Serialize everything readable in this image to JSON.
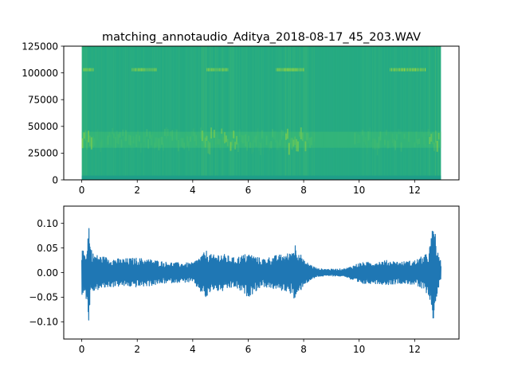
{
  "chart_data": [
    {
      "type": "heatmap",
      "title": "matching_annotaudio_Aditya_2018-08-17_45_203.WAV",
      "xlabel": "",
      "ylabel": "",
      "xlim": [
        -0.65,
        13.6
      ],
      "ylim": [
        0,
        125000
      ],
      "data_x_range": [
        0,
        12.95
      ],
      "x_ticks": [
        0,
        2,
        4,
        6,
        8,
        10,
        12
      ],
      "x_tick_labels": [
        "0",
        "2",
        "4",
        "6",
        "8",
        "10",
        "12"
      ],
      "y_ticks": [
        0,
        25000,
        50000,
        75000,
        100000,
        125000
      ],
      "y_tick_labels": [
        "0",
        "25000",
        "50000",
        "75000",
        "100000",
        "125000"
      ],
      "colormap": [
        "#1f9e89",
        "#24aa83",
        "#35b779",
        "#5ec962",
        "#a5db36"
      ],
      "energy_bands": [
        {
          "freq_range": [
            0,
            4000
          ],
          "level": "low"
        },
        {
          "freq_range": [
            30000,
            45000
          ],
          "level": "high"
        },
        {
          "freq_range": [
            100000,
            106000
          ],
          "level": "high"
        }
      ],
      "grid": false
    },
    {
      "type": "line",
      "title": "",
      "xlabel": "",
      "ylabel": "",
      "xlim": [
        -0.65,
        13.6
      ],
      "ylim": [
        -0.135,
        0.135
      ],
      "x_ticks": [
        0,
        2,
        4,
        6,
        8,
        10,
        12
      ],
      "x_tick_labels": [
        "0",
        "2",
        "4",
        "6",
        "8",
        "10",
        "12"
      ],
      "y_ticks": [
        -0.1,
        -0.05,
        0.0,
        0.05,
        0.1
      ],
      "y_tick_labels": [
        "−0.10",
        "−0.05",
        "0.00",
        "0.05",
        "0.10"
      ],
      "line_color": "#1f77b4",
      "envelope": {
        "t": [
          0,
          0.1,
          0.2,
          0.25,
          0.3,
          0.4,
          0.6,
          1.0,
          1.4,
          2.0,
          2.5,
          3.0,
          3.5,
          4.0,
          4.5,
          4.7,
          5.0,
          5.5,
          6.0,
          6.5,
          7.0,
          7.5,
          7.7,
          8.0,
          8.5,
          9.0,
          9.5,
          10.0,
          10.5,
          11.0,
          11.5,
          12.0,
          12.5,
          12.7,
          12.8,
          12.9,
          12.95
        ],
        "max": [
          0.045,
          0.045,
          0.05,
          0.12,
          0.06,
          0.04,
          0.035,
          0.03,
          0.028,
          0.03,
          0.027,
          0.022,
          0.02,
          0.02,
          0.045,
          0.035,
          0.04,
          0.03,
          0.04,
          0.028,
          0.035,
          0.04,
          0.06,
          0.025,
          0.008,
          0.007,
          0.008,
          0.02,
          0.022,
          0.025,
          0.022,
          0.025,
          0.04,
          0.108,
          0.05,
          0.025,
          0.025
        ],
        "min": [
          -0.045,
          -0.045,
          -0.06,
          -0.12,
          -0.05,
          -0.04,
          -0.035,
          -0.03,
          -0.028,
          -0.03,
          -0.027,
          -0.022,
          -0.02,
          -0.02,
          -0.055,
          -0.035,
          -0.04,
          -0.03,
          -0.05,
          -0.028,
          -0.035,
          -0.04,
          -0.06,
          -0.025,
          -0.008,
          -0.007,
          -0.008,
          -0.025,
          -0.022,
          -0.025,
          -0.022,
          -0.025,
          -0.045,
          -0.105,
          -0.05,
          -0.025,
          -0.025
        ]
      },
      "grid": false
    }
  ]
}
